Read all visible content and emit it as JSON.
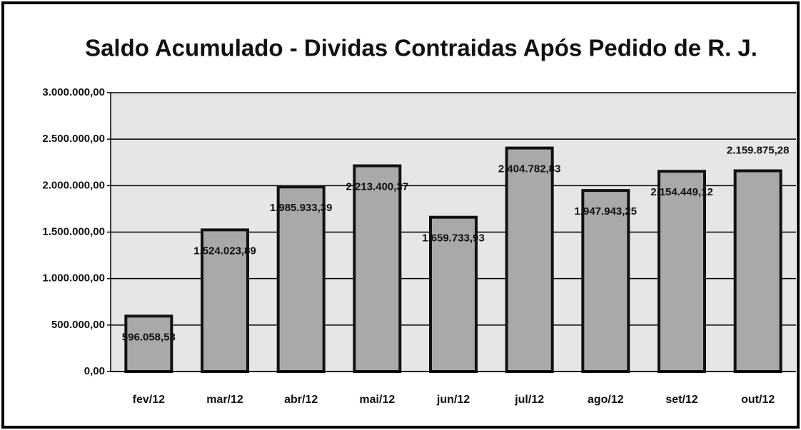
{
  "chart_data": {
    "type": "bar",
    "title": "Saldo Acumulado - Dividas Contraidas Após Pedido de R. J.",
    "categories": [
      "fev/12",
      "mar/12",
      "abr/12",
      "mai/12",
      "jun/12",
      "jul/12",
      "ago/12",
      "set/12",
      "out/12"
    ],
    "values": [
      596058.53,
      1524023.89,
      1985933.39,
      2213400.37,
      1659733.93,
      2404782.83,
      1947943.25,
      2154449.12,
      2159875.28
    ],
    "value_labels": [
      "596.058,53",
      "1.524.023,89",
      "1.985.933,39",
      "2.213.400,37",
      "1.659.733,93",
      "2.404.782,83",
      "1.947.943,25",
      "2.154.449,12",
      "2.159.875,28"
    ],
    "color": "#a9a9a9",
    "ylim": [
      0,
      3000000
    ],
    "yticks": [
      {
        "value": 0,
        "label": "0,00"
      },
      {
        "value": 500000,
        "label": "500.000,00"
      },
      {
        "value": 1000000,
        "label": "1.000.000,00"
      },
      {
        "value": 1500000,
        "label": "1.500.000,00"
      },
      {
        "value": 2000000,
        "label": "2.000.000,00"
      },
      {
        "value": 2500000,
        "label": "2.500.000,00"
      },
      {
        "value": 3000000,
        "label": "3.000.000,00"
      }
    ],
    "grid": true
  }
}
